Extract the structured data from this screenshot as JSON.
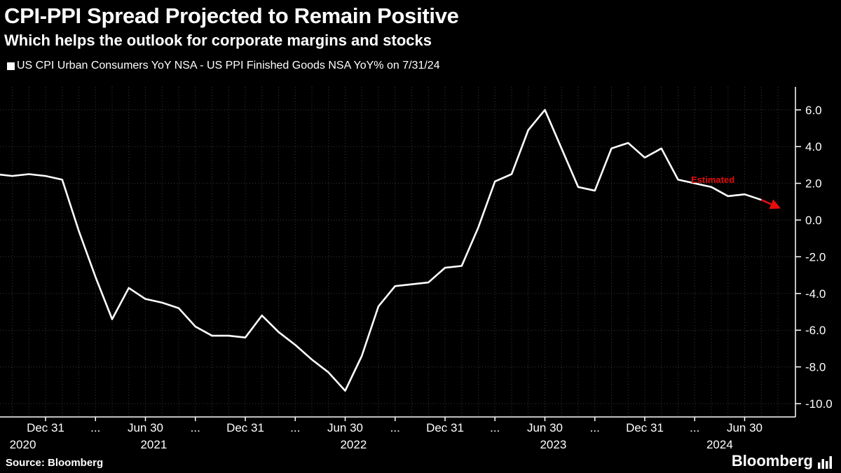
{
  "footer": {
    "source": "Source: Bloomberg",
    "logo": "Bloomberg"
  },
  "colors": {
    "background": "#000000",
    "line": "#ffffff",
    "grid": "#3a3a3a",
    "axis": "#ffffff",
    "text": "#ffffff",
    "estimated": "#e60c0c"
  },
  "chart_data": {
    "type": "line",
    "title": "CPI-PPI Spread Projected to Remain Positive",
    "subtitle": "Which helps the outlook for corporate margins and stocks",
    "xlabel": "",
    "ylabel": "",
    "legend_position": "top-left",
    "y_axis_side": "right",
    "grid": "dotted",
    "ylim": [
      -10,
      6
    ],
    "ytick_interval": 2,
    "yticks": [
      "6.0",
      "4.0",
      "2.0",
      "0.0",
      "-2.0",
      "-4.0",
      "-6.0",
      "-8.0",
      "-10.0"
    ],
    "x": [
      "2020-09",
      "2020-10",
      "2020-11",
      "2020-12",
      "2021-01",
      "2021-02",
      "2021-03",
      "2021-04",
      "2021-05",
      "2021-06",
      "2021-07",
      "2021-08",
      "2021-09",
      "2021-10",
      "2021-11",
      "2021-12",
      "2022-01",
      "2022-02",
      "2022-03",
      "2022-04",
      "2022-05",
      "2022-06",
      "2022-07",
      "2022-08",
      "2022-09",
      "2022-10",
      "2022-11",
      "2022-12",
      "2023-01",
      "2023-02",
      "2023-03",
      "2023-04",
      "2023-05",
      "2023-06",
      "2023-07",
      "2023-08",
      "2023-09",
      "2023-10",
      "2023-11",
      "2023-12",
      "2024-01",
      "2024-02",
      "2024-03",
      "2024-04",
      "2024-05",
      "2024-06",
      "2024-07"
    ],
    "series": [
      {
        "name": "US CPI Urban Consumers YoY NSA - US PPI Finished Goods NSA YoY% on 7/31/24",
        "values": [
          2.5,
          2.4,
          2.5,
          2.4,
          2.2,
          -0.6,
          -3.1,
          -5.4,
          -3.7,
          -4.3,
          -4.5,
          -4.8,
          -5.8,
          -6.3,
          -6.3,
          -6.4,
          -5.2,
          -6.1,
          -6.8,
          -7.6,
          -8.3,
          -9.3,
          -7.4,
          -4.7,
          -3.6,
          -3.5,
          -3.4,
          -2.6,
          -2.5,
          -0.4,
          2.1,
          2.5,
          4.9,
          6.0,
          3.9,
          1.8,
          1.6,
          3.9,
          4.2,
          3.4,
          3.9,
          2.2,
          2.0,
          1.8,
          1.3,
          1.4,
          1.1
        ]
      }
    ],
    "estimated_point": {
      "x": "2024-08",
      "value": 0.7
    },
    "estimated_label": "Estimated",
    "xticks": [
      {
        "x": "2020-12",
        "label": "Dec 31"
      },
      {
        "x": "2021-03",
        "label": "..."
      },
      {
        "x": "2021-06",
        "label": "Jun 30"
      },
      {
        "x": "2021-09",
        "label": "..."
      },
      {
        "x": "2021-12",
        "label": "Dec 31"
      },
      {
        "x": "2022-03",
        "label": "..."
      },
      {
        "x": "2022-06",
        "label": "Jun 30"
      },
      {
        "x": "2022-09",
        "label": "..."
      },
      {
        "x": "2022-12",
        "label": "Dec 31"
      },
      {
        "x": "2023-03",
        "label": "..."
      },
      {
        "x": "2023-06",
        "label": "Jun 30"
      },
      {
        "x": "2023-09",
        "label": "..."
      },
      {
        "x": "2023-12",
        "label": "Dec 31"
      },
      {
        "x": "2024-03",
        "label": "..."
      },
      {
        "x": "2024-06",
        "label": "Jun 30"
      }
    ],
    "year_labels": [
      "2020",
      "2021",
      "2022",
      "2023",
      "2024"
    ]
  }
}
